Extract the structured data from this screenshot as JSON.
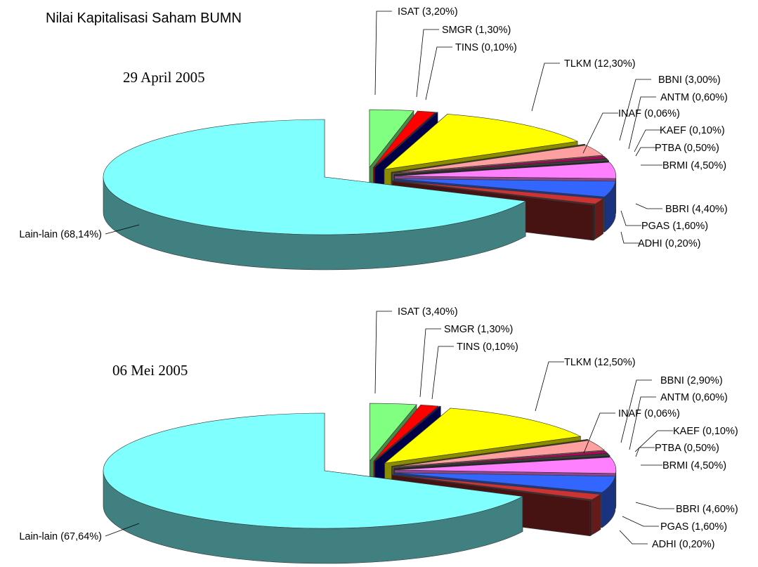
{
  "title": "Nilai Kapitalisasi Saham BUMN",
  "chart_data": [
    {
      "type": "pie",
      "subtitle": "29 April 2005",
      "slices": [
        {
          "name": "ISAT",
          "value": 3.2,
          "label": "ISAT (3,20%)",
          "color": "#80ff80"
        },
        {
          "name": "SMGR",
          "value": 1.3,
          "label": "SMGR (1,30%)",
          "color": "#ff0000"
        },
        {
          "name": "TINS",
          "value": 0.1,
          "label": "TINS (0,10%)",
          "color": "#000080"
        },
        {
          "name": "TLKM",
          "value": 12.3,
          "label": "TLKM (12,30%)",
          "color": "#ffff00"
        },
        {
          "name": "INAF",
          "value": 0.06,
          "label": "INAF (0,06%)",
          "color": "#808000"
        },
        {
          "name": "BBNI",
          "value": 3.0,
          "label": "BBNI (3,00%)",
          "color": "#ffa0a0"
        },
        {
          "name": "ANTM",
          "value": 0.6,
          "label": "ANTM (0,60%)",
          "color": "#c00060"
        },
        {
          "name": "KAEF",
          "value": 0.1,
          "label": "KAEF (0,10%)",
          "color": "#6060a0"
        },
        {
          "name": "PTBA",
          "value": 0.5,
          "label": "PTBA (0,50%)",
          "color": "#404040"
        },
        {
          "name": "BRMI",
          "value": 4.5,
          "label": "BRMI (4,50%)",
          "color": "#ff80ff"
        },
        {
          "name": "BBRI",
          "value": 4.4,
          "label": "BBRI (4,40%)",
          "color": "#3366ff"
        },
        {
          "name": "PGAS",
          "value": 1.6,
          "label": "PGAS (1,60%)",
          "color": "#cc3333"
        },
        {
          "name": "ADHI",
          "value": 0.2,
          "label": "ADHI (0,20%)",
          "color": "#802020"
        },
        {
          "name": "Lain-lain",
          "value": 68.14,
          "label": "Lain-lain (68,14%)",
          "color": "#80ffff"
        }
      ]
    },
    {
      "type": "pie",
      "subtitle": "06 Mei 2005",
      "slices": [
        {
          "name": "ISAT",
          "value": 3.4,
          "label": "ISAT (3,40%)",
          "color": "#80ff80"
        },
        {
          "name": "SMGR",
          "value": 1.3,
          "label": "SMGR (1,30%)",
          "color": "#ff0000"
        },
        {
          "name": "TINS",
          "value": 0.1,
          "label": "TINS (0,10%)",
          "color": "#000080"
        },
        {
          "name": "TLKM",
          "value": 12.5,
          "label": "TLKM (12,50%)",
          "color": "#ffff00"
        },
        {
          "name": "INAF",
          "value": 0.06,
          "label": "INAF (0,06%)",
          "color": "#808000"
        },
        {
          "name": "BBNI",
          "value": 2.9,
          "label": "BBNI (2,90%)",
          "color": "#ffa0a0"
        },
        {
          "name": "ANTM",
          "value": 0.6,
          "label": "ANTM (0,60%)",
          "color": "#c00060"
        },
        {
          "name": "KAEF",
          "value": 0.1,
          "label": "KAEF (0,10%)",
          "color": "#6060a0"
        },
        {
          "name": "PTBA",
          "value": 0.5,
          "label": "PTBA (0,50%)",
          "color": "#404040"
        },
        {
          "name": "BRMI",
          "value": 4.5,
          "label": "BRMI (4,50%)",
          "color": "#ff80ff"
        },
        {
          "name": "BBRI",
          "value": 4.6,
          "label": "BBRI (4,60%)",
          "color": "#3366ff"
        },
        {
          "name": "PGAS",
          "value": 1.6,
          "label": "PGAS (1,60%)",
          "color": "#cc3333"
        },
        {
          "name": "ADHI",
          "value": 0.2,
          "label": "ADHI (0,20%)",
          "color": "#802020"
        },
        {
          "name": "Lain-lain",
          "value": 67.64,
          "label": "Lain-lain (67,64%)",
          "color": "#80ffff"
        }
      ]
    }
  ]
}
